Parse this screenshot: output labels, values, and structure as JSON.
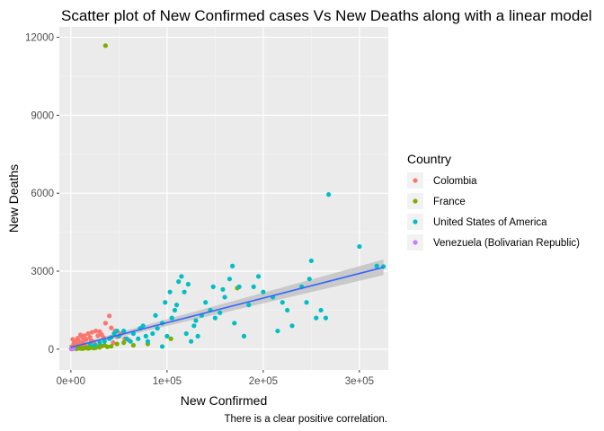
{
  "chart_data": {
    "type": "scatter",
    "title": "Scatter plot of New Confirmed cases Vs New Deaths along with a linear model",
    "xlabel": "New Confirmed",
    "ylabel": "New Deaths",
    "caption": "There is a clear positive correlation.",
    "xlim": [
      -12000,
      330000
    ],
    "ylim": [
      -800,
      12400
    ],
    "x_ticks": [
      0,
      100000,
      200000,
      300000
    ],
    "x_tick_labels": [
      "0e+00",
      "1e+05",
      "2e+05",
      "3e+05"
    ],
    "y_ticks": [
      0,
      3000,
      6000,
      9000,
      12000
    ],
    "y_tick_labels": [
      "0",
      "3000",
      "6000",
      "9000",
      "12000"
    ],
    "grid": true,
    "legend": {
      "title": "Country",
      "position": "right",
      "entries": [
        "Colombia",
        "France",
        "United States of America",
        "Venezuela (Bolivarian Republic)"
      ]
    },
    "fit_line": {
      "x": [
        0,
        325000
      ],
      "y": [
        70,
        3150
      ],
      "se_band_at_ends": [
        [
          0,
          20,
          130
        ],
        [
          325000,
          2850,
          3450
        ]
      ],
      "color": "#3366FF",
      "band_color": "#BDBDBD"
    },
    "series": [
      {
        "name": "Colombia",
        "color": "#F8766D",
        "points": [
          [
            1000,
            100
          ],
          [
            2000,
            380
          ],
          [
            3000,
            220
          ],
          [
            4000,
            60
          ],
          [
            5000,
            300
          ],
          [
            6000,
            150
          ],
          [
            7000,
            420
          ],
          [
            8000,
            80
          ],
          [
            9000,
            250
          ],
          [
            10000,
            550
          ],
          [
            11000,
            170
          ],
          [
            12000,
            450
          ],
          [
            13000,
            300
          ],
          [
            14000,
            520
          ],
          [
            15000,
            120
          ],
          [
            16000,
            380
          ],
          [
            18000,
            600
          ],
          [
            20000,
            460
          ],
          [
            22000,
            650
          ],
          [
            24000,
            280
          ],
          [
            26000,
            700
          ],
          [
            28000,
            520
          ],
          [
            30000,
            680
          ],
          [
            32000,
            560
          ],
          [
            34000,
            450
          ],
          [
            36000,
            1000
          ],
          [
            40000,
            1280
          ],
          [
            42000,
            820
          ],
          [
            44000,
            250
          ],
          [
            46000,
            700
          ],
          [
            48000,
            480
          ],
          [
            52000,
            600
          ],
          [
            56000,
            400
          ],
          [
            60000,
            350
          ],
          [
            3000,
            50
          ],
          [
            8000,
            320
          ],
          [
            12000,
            220
          ],
          [
            17000,
            90
          ],
          [
            21000,
            340
          ],
          [
            25000,
            180
          ]
        ]
      },
      {
        "name": "France",
        "color": "#7CAE00",
        "points": [
          [
            500,
            20
          ],
          [
            2000,
            30
          ],
          [
            4000,
            40
          ],
          [
            6000,
            10
          ],
          [
            8000,
            50
          ],
          [
            10000,
            30
          ],
          [
            12000,
            20
          ],
          [
            14000,
            40
          ],
          [
            16000,
            60
          ],
          [
            18000,
            30
          ],
          [
            20000,
            50
          ],
          [
            22000,
            80
          ],
          [
            24000,
            40
          ],
          [
            26000,
            60
          ],
          [
            28000,
            100
          ],
          [
            30000,
            70
          ],
          [
            32000,
            120
          ],
          [
            35000,
            150
          ],
          [
            38000,
            90
          ],
          [
            42000,
            110
          ],
          [
            48000,
            200
          ],
          [
            55000,
            250
          ],
          [
            65000,
            150
          ],
          [
            80000,
            200
          ],
          [
            104000,
            400
          ],
          [
            173000,
            2350
          ],
          [
            36000,
            11680
          ]
        ]
      },
      {
        "name": "United States of America",
        "color": "#00BFC4",
        "points": [
          [
            20000,
            200
          ],
          [
            25000,
            150
          ],
          [
            30000,
            250
          ],
          [
            35000,
            300
          ],
          [
            40000,
            400
          ],
          [
            42000,
            450
          ],
          [
            45000,
            600
          ],
          [
            48000,
            700
          ],
          [
            50000,
            500
          ],
          [
            55000,
            700
          ],
          [
            58000,
            400
          ],
          [
            62000,
            300
          ],
          [
            65000,
            600
          ],
          [
            70000,
            400
          ],
          [
            75000,
            900
          ],
          [
            78000,
            500
          ],
          [
            80000,
            300
          ],
          [
            85000,
            600
          ],
          [
            90000,
            800
          ],
          [
            95000,
            100
          ],
          [
            98000,
            1800
          ],
          [
            100000,
            500
          ],
          [
            103000,
            2200
          ],
          [
            105000,
            1200
          ],
          [
            108000,
            1500
          ],
          [
            110000,
            1700
          ],
          [
            112000,
            2600
          ],
          [
            115000,
            2800
          ],
          [
            118000,
            2200
          ],
          [
            120000,
            600
          ],
          [
            122000,
            2500
          ],
          [
            125000,
            300
          ],
          [
            128000,
            900
          ],
          [
            130000,
            1100
          ],
          [
            132000,
            500
          ],
          [
            136000,
            1300
          ],
          [
            140000,
            1800
          ],
          [
            145000,
            1500
          ],
          [
            148000,
            2400
          ],
          [
            150000,
            1200
          ],
          [
            155000,
            1400
          ],
          [
            158000,
            2300
          ],
          [
            160000,
            2000
          ],
          [
            165000,
            2700
          ],
          [
            168000,
            3200
          ],
          [
            170000,
            1000
          ],
          [
            175000,
            2400
          ],
          [
            180000,
            500
          ],
          [
            185000,
            1700
          ],
          [
            190000,
            2400
          ],
          [
            195000,
            2800
          ],
          [
            200000,
            2200
          ],
          [
            210000,
            2000
          ],
          [
            215000,
            700
          ],
          [
            220000,
            1800
          ],
          [
            225000,
            1500
          ],
          [
            230000,
            900
          ],
          [
            240000,
            2400
          ],
          [
            245000,
            1800
          ],
          [
            248000,
            2700
          ],
          [
            250000,
            3400
          ],
          [
            255000,
            1200
          ],
          [
            260000,
            1500
          ],
          [
            265000,
            1200
          ],
          [
            268000,
            5950
          ],
          [
            300000,
            3950
          ],
          [
            318000,
            3200
          ],
          [
            325000,
            3180
          ],
          [
            95000,
            1000
          ],
          [
            72000,
            800
          ],
          [
            88000,
            1300
          ]
        ]
      },
      {
        "name": "Venezuela (Bolivarian Republic)",
        "color": "#C77CFF",
        "points": [
          [
            500,
            5
          ],
          [
            800,
            8
          ],
          [
            1200,
            10
          ],
          [
            1500,
            12
          ],
          [
            2000,
            15
          ],
          [
            2500,
            18
          ]
        ]
      }
    ]
  }
}
